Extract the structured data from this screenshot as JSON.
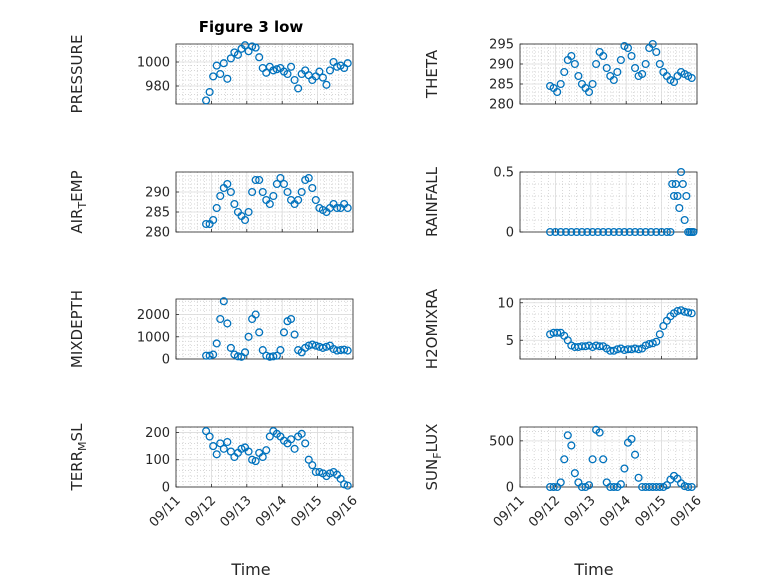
{
  "figure_title": "Figure 3 low",
  "xlabel": "Time",
  "x_ticks": [
    "09/11",
    "09/12",
    "09/13",
    "09/14",
    "09/15",
    "09/16"
  ],
  "marker_color": "#0072BD",
  "chart_data": [
    {
      "type": "scatter",
      "ylabel": "PRESSURE",
      "ylabel_sub": "",
      "ylabel_rest": "",
      "title": "Figure 3 low",
      "xlim": [
        0,
        5
      ],
      "ylim": [
        965,
        1015
      ],
      "yticks": [
        980,
        1000
      ],
      "x": [
        0.85,
        0.95,
        1.05,
        1.15,
        1.25,
        1.35,
        1.45,
        1.55,
        1.65,
        1.75,
        1.85,
        1.95,
        2.05,
        2.15,
        2.25,
        2.35,
        2.45,
        2.55,
        2.65,
        2.75,
        2.85,
        2.95,
        3.05,
        3.15,
        3.25,
        3.35,
        3.45,
        3.55,
        3.65,
        3.75,
        3.85,
        3.95,
        4.05,
        4.15,
        4.25,
        4.35,
        4.45,
        4.55,
        4.65,
        4.75,
        4.85
      ],
      "y": [
        968,
        975,
        988,
        997,
        990,
        999,
        986,
        1003,
        1008,
        1006,
        1011,
        1014,
        1009,
        1013,
        1012,
        1004,
        995,
        991,
        996,
        993,
        994,
        995,
        992,
        990,
        996,
        985,
        978,
        990,
        993,
        989,
        985,
        988,
        992,
        987,
        981,
        993,
        1000,
        996,
        997,
        995,
        999
      ]
    },
    {
      "type": "scatter",
      "ylabel": "THETA",
      "ylabel_sub": "",
      "ylabel_rest": "",
      "xlim": [
        0,
        5
      ],
      "ylim": [
        280,
        295
      ],
      "yticks": [
        280,
        285,
        290,
        295
      ],
      "x": [
        0.85,
        0.95,
        1.05,
        1.15,
        1.25,
        1.35,
        1.45,
        1.55,
        1.65,
        1.75,
        1.85,
        1.95,
        2.05,
        2.15,
        2.25,
        2.35,
        2.45,
        2.55,
        2.65,
        2.75,
        2.85,
        2.95,
        3.05,
        3.15,
        3.25,
        3.35,
        3.45,
        3.55,
        3.65,
        3.75,
        3.85,
        3.95,
        4.05,
        4.15,
        4.25,
        4.35,
        4.45,
        4.55,
        4.65,
        4.75,
        4.85
      ],
      "y": [
        284.5,
        284,
        283,
        285,
        288,
        291,
        292,
        290,
        287,
        285,
        284,
        283,
        285,
        290,
        293,
        292,
        289,
        287,
        286,
        288,
        291,
        294.5,
        294,
        292,
        289,
        287,
        287.5,
        290,
        294,
        295,
        293,
        290,
        288,
        287,
        286,
        285.5,
        287,
        288,
        287.5,
        287,
        286.5
      ]
    },
    {
      "type": "scatter",
      "ylabel": "AIR",
      "ylabel_sub": "T",
      "ylabel_rest": "EMP",
      "xlim": [
        0,
        5
      ],
      "ylim": [
        280,
        295
      ],
      "yticks": [
        280,
        285,
        290
      ],
      "x": [
        0.85,
        0.95,
        1.05,
        1.15,
        1.25,
        1.35,
        1.45,
        1.55,
        1.65,
        1.75,
        1.85,
        1.95,
        2.05,
        2.15,
        2.25,
        2.35,
        2.45,
        2.55,
        2.65,
        2.75,
        2.85,
        2.95,
        3.05,
        3.15,
        3.25,
        3.35,
        3.45,
        3.55,
        3.65,
        3.75,
        3.85,
        3.95,
        4.05,
        4.15,
        4.25,
        4.35,
        4.45,
        4.55,
        4.65,
        4.75,
        4.85
      ],
      "y": [
        282,
        282,
        283,
        286,
        289,
        291,
        292,
        290,
        287,
        285,
        284,
        283,
        285,
        290,
        293,
        293,
        290,
        288,
        287,
        289,
        292,
        293.5,
        292,
        290,
        288,
        287,
        288,
        290,
        293,
        293.5,
        291,
        288,
        286,
        285.5,
        285,
        286,
        287,
        286,
        286,
        287,
        286
      ]
    },
    {
      "type": "scatter",
      "ylabel": "RAINFALL",
      "ylabel_sub": "",
      "ylabel_rest": "",
      "xlim": [
        0,
        5
      ],
      "ylim": [
        0,
        0.5
      ],
      "yticks": [
        0,
        0.5
      ],
      "x": [
        0.85,
        1.0,
        1.15,
        1.3,
        1.45,
        1.6,
        1.75,
        1.9,
        2.05,
        2.2,
        2.35,
        2.5,
        2.65,
        2.8,
        2.95,
        3.1,
        3.25,
        3.4,
        3.55,
        3.7,
        3.85,
        4.0,
        4.15,
        4.25,
        4.3,
        4.35,
        4.4,
        4.45,
        4.5,
        4.55,
        4.6,
        4.65,
        4.7,
        4.75,
        4.8,
        4.85,
        4.9
      ],
      "y": [
        0,
        0,
        0,
        0,
        0,
        0,
        0,
        0,
        0,
        0,
        0,
        0,
        0,
        0,
        0,
        0,
        0,
        0,
        0,
        0,
        0,
        0,
        0,
        0,
        0.4,
        0.3,
        0.4,
        0.3,
        0.2,
        0.5,
        0.4,
        0.1,
        0.3,
        0,
        0,
        0,
        0
      ]
    },
    {
      "type": "scatter",
      "ylabel": "MIXDEPTH",
      "ylabel_sub": "",
      "ylabel_rest": "",
      "xlim": [
        0,
        5
      ],
      "ylim": [
        0,
        2700
      ],
      "yticks": [
        0,
        1000,
        2000
      ],
      "x": [
        0.85,
        0.95,
        1.05,
        1.15,
        1.25,
        1.35,
        1.45,
        1.55,
        1.65,
        1.75,
        1.85,
        1.95,
        2.05,
        2.15,
        2.25,
        2.35,
        2.45,
        2.55,
        2.65,
        2.75,
        2.85,
        2.95,
        3.05,
        3.15,
        3.25,
        3.35,
        3.45,
        3.55,
        3.65,
        3.75,
        3.85,
        3.95,
        4.05,
        4.15,
        4.25,
        4.35,
        4.45,
        4.55,
        4.65,
        4.75,
        4.85
      ],
      "y": [
        150,
        150,
        200,
        700,
        1800,
        2600,
        1600,
        500,
        200,
        120,
        100,
        300,
        1000,
        1800,
        2000,
        1200,
        400,
        150,
        100,
        120,
        150,
        400,
        1200,
        1700,
        1800,
        1100,
        400,
        300,
        500,
        600,
        650,
        600,
        550,
        500,
        550,
        600,
        450,
        380,
        400,
        420,
        380
      ]
    },
    {
      "type": "scatter",
      "ylabel": "H2OMIXRA",
      "ylabel_sub": "",
      "ylabel_rest": "",
      "xlim": [
        0,
        5
      ],
      "ylim": [
        2.5,
        10.5
      ],
      "yticks": [
        5,
        10
      ],
      "x": [
        0.85,
        0.95,
        1.05,
        1.15,
        1.25,
        1.35,
        1.45,
        1.55,
        1.65,
        1.75,
        1.85,
        1.95,
        2.05,
        2.15,
        2.25,
        2.35,
        2.45,
        2.55,
        2.65,
        2.75,
        2.85,
        2.95,
        3.05,
        3.15,
        3.25,
        3.35,
        3.45,
        3.55,
        3.65,
        3.75,
        3.85,
        3.95,
        4.05,
        4.15,
        4.25,
        4.35,
        4.45,
        4.55,
        4.65,
        4.75,
        4.85
      ],
      "y": [
        5.8,
        6,
        6,
        6,
        5.6,
        5,
        4.3,
        4.1,
        4.1,
        4.2,
        4.2,
        4.3,
        4.1,
        4.3,
        4.2,
        4.2,
        3.9,
        3.6,
        3.6,
        3.8,
        3.9,
        3.7,
        3.8,
        3.8,
        3.9,
        3.8,
        3.9,
        4.3,
        4.5,
        4.6,
        4.8,
        5.8,
        6.9,
        7.6,
        8.2,
        8.6,
        8.9,
        9.0,
        8.8,
        8.7,
        8.6
      ]
    },
    {
      "type": "scatter",
      "ylabel": "TERR",
      "ylabel_sub": "M",
      "ylabel_rest": "SL",
      "xlim": [
        0,
        5
      ],
      "ylim": [
        0,
        220
      ],
      "yticks": [
        0,
        100,
        200
      ],
      "x": [
        0.85,
        0.95,
        1.05,
        1.15,
        1.25,
        1.35,
        1.45,
        1.55,
        1.65,
        1.75,
        1.85,
        1.95,
        2.05,
        2.15,
        2.25,
        2.35,
        2.45,
        2.55,
        2.65,
        2.75,
        2.85,
        2.95,
        3.05,
        3.15,
        3.25,
        3.35,
        3.45,
        3.55,
        3.65,
        3.75,
        3.85,
        3.95,
        4.05,
        4.15,
        4.25,
        4.35,
        4.45,
        4.55,
        4.65,
        4.75,
        4.85
      ],
      "y": [
        205,
        185,
        150,
        120,
        160,
        140,
        165,
        130,
        110,
        125,
        140,
        145,
        130,
        100,
        95,
        125,
        110,
        135,
        185,
        205,
        195,
        185,
        170,
        160,
        175,
        140,
        185,
        195,
        160,
        100,
        80,
        55,
        55,
        50,
        40,
        50,
        55,
        45,
        30,
        10,
        5
      ]
    },
    {
      "type": "scatter",
      "ylabel": "SUN",
      "ylabel_sub": "F",
      "ylabel_rest": "LUX",
      "xlim": [
        0,
        5
      ],
      "ylim": [
        0,
        650
      ],
      "yticks": [
        0,
        500
      ],
      "x": [
        0.85,
        0.95,
        1.05,
        1.15,
        1.25,
        1.35,
        1.45,
        1.55,
        1.65,
        1.75,
        1.85,
        1.95,
        2.05,
        2.15,
        2.25,
        2.35,
        2.45,
        2.55,
        2.65,
        2.75,
        2.85,
        2.95,
        3.05,
        3.15,
        3.25,
        3.35,
        3.45,
        3.55,
        3.65,
        3.75,
        3.85,
        3.95,
        4.05,
        4.15,
        4.25,
        4.35,
        4.45,
        4.55,
        4.65,
        4.75,
        4.85
      ],
      "y": [
        0,
        0,
        0,
        50,
        300,
        560,
        450,
        150,
        50,
        0,
        0,
        20,
        300,
        620,
        590,
        300,
        50,
        0,
        0,
        0,
        30,
        200,
        480,
        520,
        350,
        100,
        0,
        0,
        0,
        0,
        0,
        0,
        0,
        20,
        80,
        120,
        90,
        40,
        10,
        0,
        0
      ]
    }
  ]
}
